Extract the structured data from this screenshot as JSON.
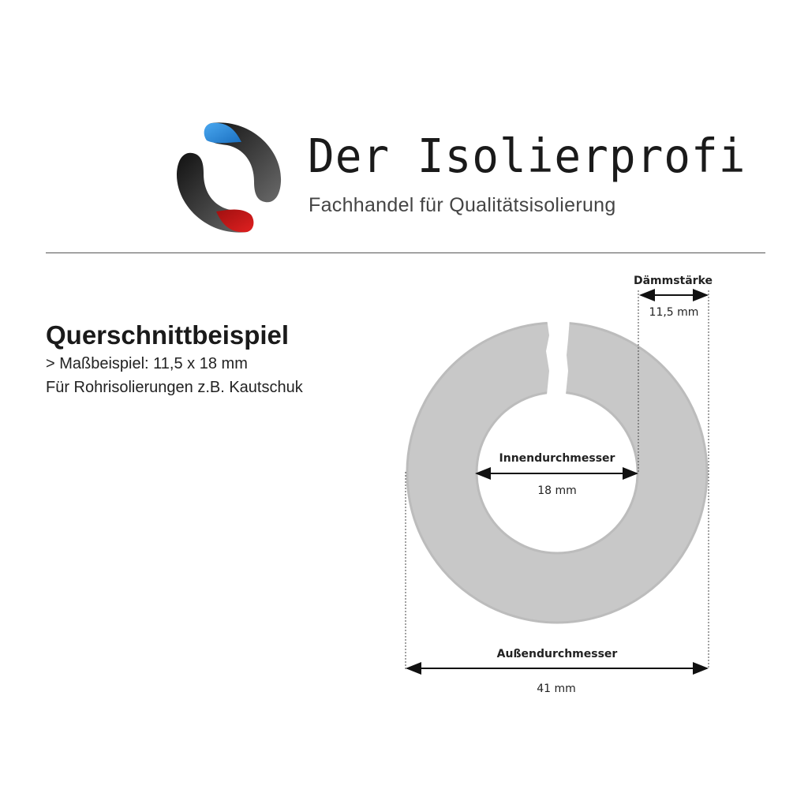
{
  "brand": {
    "name": "Der Isolierprofi",
    "tagline": "Fachhandel für Qualitätsisolierung",
    "colors": {
      "blue": "#2a8ad8",
      "red": "#d01a1e",
      "dark": "#2b2b2b"
    }
  },
  "intro": {
    "title": "Querschnittbeispiel",
    "line1": "> Maßbeispiel: 11,5 x 18 mm",
    "line2": "Für Rohrisolierungen z.B. Kautschuk"
  },
  "diagram": {
    "ring_color": "#c8c8c8",
    "thickness": {
      "label": "Dämmstärke",
      "value": "11,5 mm"
    },
    "inner": {
      "label": "Innendurchmesser",
      "value": "18 mm"
    },
    "outer": {
      "label": "Außendurchmesser",
      "value": "41 mm"
    }
  }
}
